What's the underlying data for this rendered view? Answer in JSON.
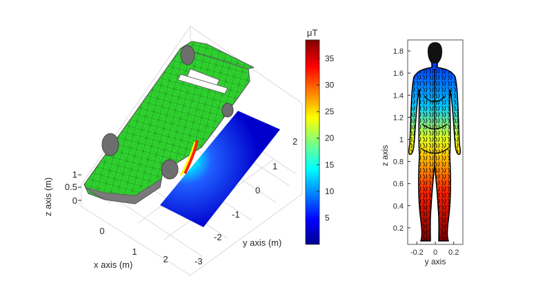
{
  "chart_data": [
    {
      "type": "surface-3d",
      "xlabel": "x axis (m)",
      "ylabel": "y axis (m)",
      "zlabel": "z axis (m)",
      "x_ticks": [
        "0",
        "1",
        "2"
      ],
      "y_ticks": [
        "-3",
        "-2",
        "-1",
        "0",
        "1",
        "2"
      ],
      "z_ticks": [
        "0",
        "0.5",
        "1"
      ],
      "xlim": [
        -0.5,
        2.5
      ],
      "ylim": [
        -3,
        3
      ],
      "zlim": [
        0,
        1
      ],
      "grid": true,
      "colormap": "jet",
      "mesh_color": "#3fd13f",
      "colorbar": {
        "label": "μT",
        "ticks": [
          "5",
          "10",
          "15",
          "20",
          "25",
          "30",
          "35"
        ],
        "range": [
          0,
          38.5
        ],
        "location": "right"
      }
    },
    {
      "type": "heatmap",
      "xlabel": "y axis",
      "ylabel": "z axis",
      "x_ticks": [
        "-0.2",
        "0",
        "0.2"
      ],
      "y_ticks": [
        "0.2",
        "0.4",
        "0.6",
        "0.8",
        "1",
        "1.2",
        "1.4",
        "1.6",
        "1.8"
      ],
      "xlim": [
        -0.3,
        0.3
      ],
      "ylim": [
        0.05,
        1.9
      ],
      "colormap": "jet"
    }
  ]
}
